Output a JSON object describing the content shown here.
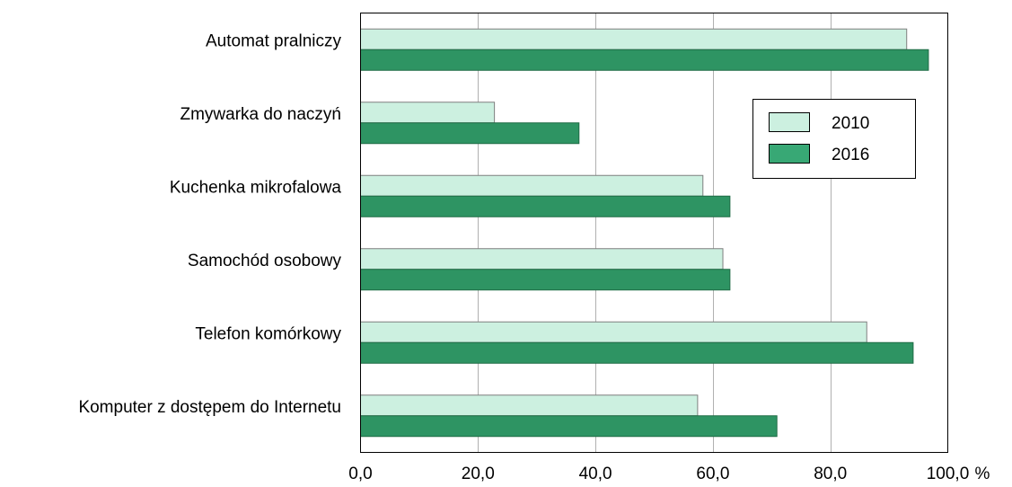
{
  "chart_data": {
    "type": "bar",
    "orientation": "horizontal",
    "categories": [
      "Automat pralniczy",
      "Zmywarka do naczyń",
      "Kuchenka mikrofalowa",
      "Samochód osobowy",
      "Telefon komórkowy",
      "Komputer z dostępem do Internetu"
    ],
    "series": [
      {
        "name": "2010",
        "color": "#ccf0e0",
        "values": [
          93.0,
          22.8,
          58.3,
          61.7,
          86.2,
          57.4
        ]
      },
      {
        "name": "2016",
        "color": "#2e9463",
        "values": [
          96.7,
          37.2,
          62.9,
          62.9,
          94.1,
          70.9
        ]
      }
    ],
    "xlim": [
      0,
      100
    ],
    "xticks": [
      "0,0",
      "20,0",
      "40,0",
      "60,0",
      "80,0",
      "100,0"
    ],
    "unit": "%",
    "grid": "vertical",
    "legend": "inside-top-right",
    "legend_swatch_colors": {
      "2010": "#ccf0e0",
      "2016": "#38a875"
    },
    "title": "",
    "xlabel": "",
    "ylabel": ""
  }
}
